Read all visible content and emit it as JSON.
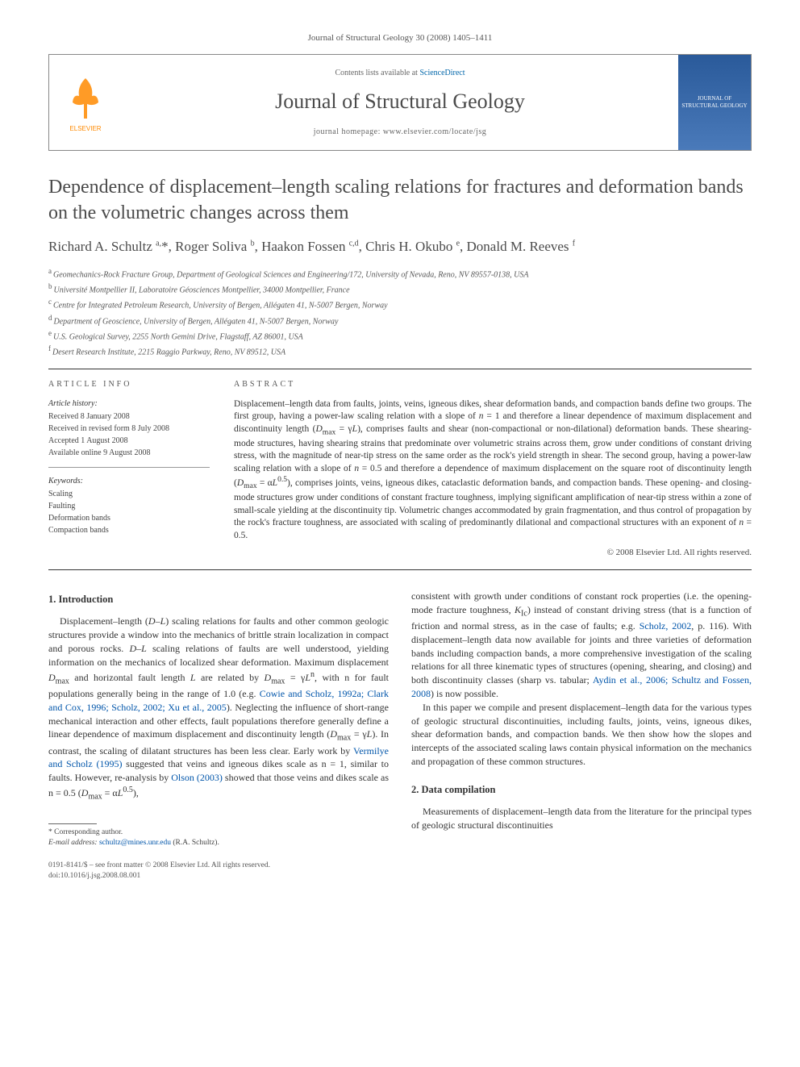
{
  "journal_ref": "Journal of Structural Geology 30 (2008) 1405–1411",
  "header": {
    "contents_prefix": "Contents lists available at ",
    "contents_link": "ScienceDirect",
    "journal_name": "Journal of Structural Geology",
    "homepage_prefix": "journal homepage: ",
    "homepage_url": "www.elsevier.com/locate/jsg",
    "publisher_logo_label": "ELSEVIER",
    "cover_label": "JOURNAL OF STRUCTURAL GEOLOGY"
  },
  "title": "Dependence of displacement–length scaling relations for fractures and deformation bands on the volumetric changes across them",
  "authors_html": "Richard A. Schultz <sup>a,</sup>*, Roger Soliva <sup>b</sup>, Haakon Fossen <sup>c,d</sup>, Chris H. Okubo <sup>e</sup>, Donald M. Reeves <sup>f</sup>",
  "affiliations": [
    {
      "sup": "a",
      "text": "Geomechanics-Rock Fracture Group, Department of Geological Sciences and Engineering/172, University of Nevada, Reno, NV 89557-0138, USA"
    },
    {
      "sup": "b",
      "text": "Université Montpellier II, Laboratoire Géosciences Montpellier, 34000 Montpellier, France"
    },
    {
      "sup": "c",
      "text": "Centre for Integrated Petroleum Research, University of Bergen, Allégaten 41, N-5007 Bergen, Norway"
    },
    {
      "sup": "d",
      "text": "Department of Geoscience, University of Bergen, Allégaten 41, N-5007 Bergen, Norway"
    },
    {
      "sup": "e",
      "text": "U.S. Geological Survey, 2255 North Gemini Drive, Flagstaff, AZ 86001, USA"
    },
    {
      "sup": "f",
      "text": "Desert Research Institute, 2215 Raggio Parkway, Reno, NV 89512, USA"
    }
  ],
  "article_info": {
    "heading": "ARTICLE INFO",
    "history_label": "Article history:",
    "history": [
      "Received 8 January 2008",
      "Received in revised form 8 July 2008",
      "Accepted 1 August 2008",
      "Available online 9 August 2008"
    ],
    "keywords_label": "Keywords:",
    "keywords": [
      "Scaling",
      "Faulting",
      "Deformation bands",
      "Compaction bands"
    ]
  },
  "abstract": {
    "heading": "ABSTRACT",
    "text_html": "Displacement–length data from faults, joints, veins, igneous dikes, shear deformation bands, and compaction bands define two groups. The first group, having a power-law scaling relation with a slope of <em>n</em> = 1 and therefore a linear dependence of maximum displacement and discontinuity length (<em>D</em><sub>max</sub> = γ<em>L</em>), comprises faults and shear (non-compactional or non-dilational) deformation bands. These shearing-mode structures, having shearing strains that predominate over volumetric strains across them, grow under conditions of constant driving stress, with the magnitude of near-tip stress on the same order as the rock's yield strength in shear. The second group, having a power-law scaling relation with a slope of <em>n</em> = 0.5 and therefore a dependence of maximum displacement on the square root of discontinuity length (<em>D</em><sub>max</sub> = α<em>L</em><sup>0.5</sup>), comprises joints, veins, igneous dikes, cataclastic deformation bands, and compaction bands. These opening- and closing-mode structures grow under conditions of constant fracture toughness, implying significant amplification of near-tip stress within a zone of small-scale yielding at the discontinuity tip. Volumetric changes accommodated by grain fragmentation, and thus control of propagation by the rock's fracture toughness, are associated with scaling of predominantly dilational and compactional structures with an exponent of <em>n</em> = 0.5.",
    "copyright": "© 2008 Elsevier Ltd. All rights reserved."
  },
  "body": {
    "sec1_heading": "1. Introduction",
    "sec1_p1_html": "Displacement–length (<em>D–L</em>) scaling relations for faults and other common geologic structures provide a window into the mechanics of brittle strain localization in compact and porous rocks. <em>D–L</em> scaling relations of faults are well understood, yielding information on the mechanics of localized shear deformation. Maximum displacement <em>D</em><sub>max</sub> and horizontal fault length <em>L</em> are related by <em>D</em><sub>max</sub> = γ<em>L</em><sup>n</sup>, with n for fault populations generally being in the range of 1.0 (e.g. <span class=\"cite\">Cowie and Scholz, 1992a; Clark and Cox, 1996; Scholz, 2002; Xu et al., 2005</span>). Neglecting the influence of short-range mechanical interaction and other effects, fault populations therefore generally define a linear dependence of maximum displacement and discontinuity length (<em>D</em><sub>max</sub> = γ<em>L</em>). In contrast, the scaling of dilatant structures has been less clear. Early work by <span class=\"cite\">Vermilye and Scholz (1995)</span> suggested that veins and igneous dikes scale as n = 1, similar to faults. However, re-analysis by <span class=\"cite\">Olson (2003)</span> showed that those veins and dikes scale as n = 0.5 (<em>D</em><sub>max</sub> = α<em>L</em><sup>0.5</sup>),",
    "col2_p1_html": "consistent with growth under conditions of constant rock properties (i.e. the opening-mode fracture toughness, <em>K</em><sub>Ic</sub>) instead of constant driving stress (that is a function of friction and normal stress, as in the case of faults; e.g. <span class=\"cite\">Scholz, 2002</span>, p. 116). With displacement–length data now available for joints and three varieties of deformation bands including compaction bands, a more comprehensive investigation of the scaling relations for all three kinematic types of structures (opening, shearing, and closing) and both discontinuity classes (sharp vs. tabular; <span class=\"cite\">Aydin et al., 2006; Schultz and Fossen, 2008</span>) is now possible.",
    "col2_p2_html": "In this paper we compile and present displacement–length data for the various types of geologic structural discontinuities, including faults, joints, veins, igneous dikes, shear deformation bands, and compaction bands. We then show how the slopes and intercepts of the associated scaling laws contain physical information on the mechanics and propagation of these common structures.",
    "sec2_heading": "2. Data compilation",
    "sec2_p1_html": "Measurements of displacement–length data from the literature for the principal types of geologic structural discontinuities"
  },
  "footnote": {
    "corr": "* Corresponding author.",
    "email_label": "E-mail address: ",
    "email": "schultz@mines.unr.edu",
    "email_suffix": " (R.A. Schultz)."
  },
  "bottom": {
    "line1": "0191-8141/$ – see front matter © 2008 Elsevier Ltd. All rights reserved.",
    "line2": "doi:10.1016/j.jsg.2008.08.001"
  },
  "colors": {
    "link": "#0055aa",
    "text": "#333333",
    "heading": "#4a4a4a",
    "border": "#888888",
    "elsevier_orange": "#ff8a00",
    "cover_blue": "#3a6aaa"
  }
}
